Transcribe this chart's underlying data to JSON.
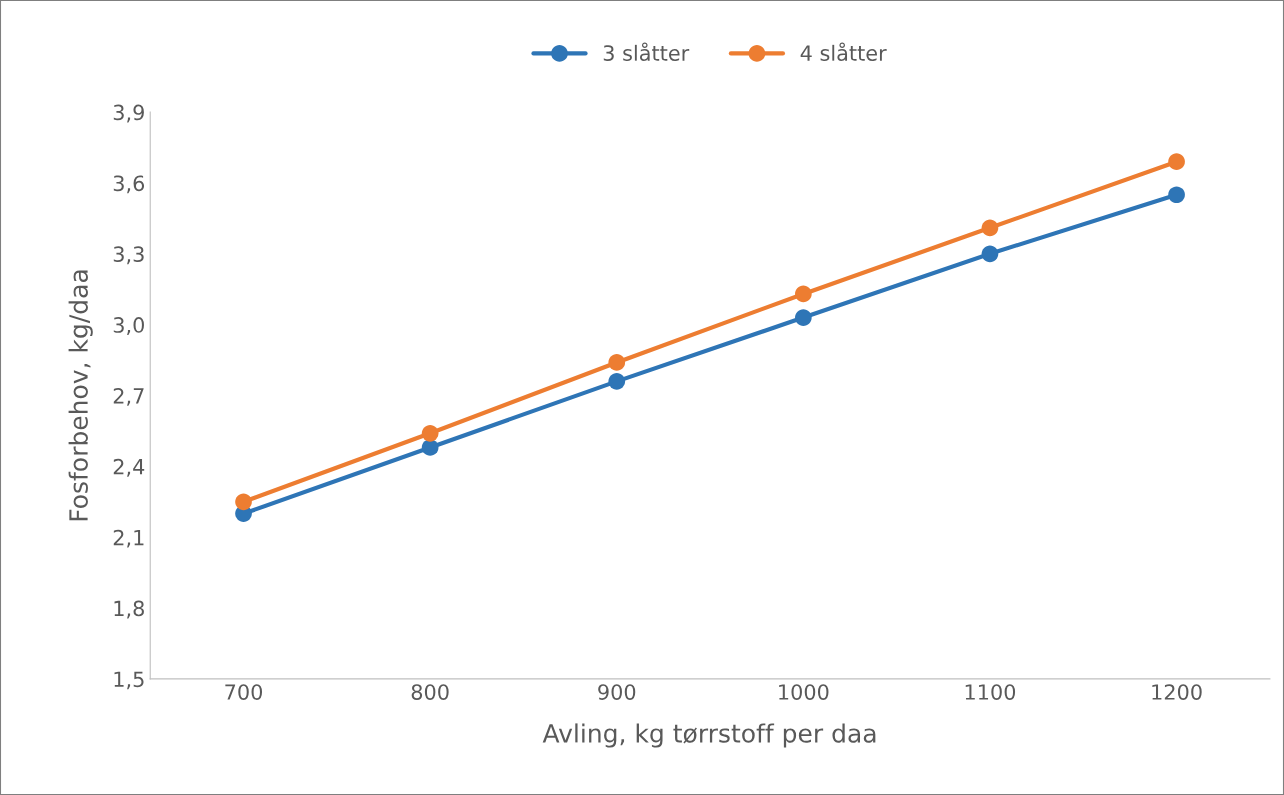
{
  "chart_data": {
    "type": "line",
    "xlabel": "Avling, kg tørrstoff per daa",
    "ylabel": "Fosforbehov, kg/daa",
    "categories": [
      "700",
      "800",
      "900",
      "1000",
      "1100",
      "1200"
    ],
    "series": [
      {
        "name": "3 slåtter",
        "color": "#2e75b6",
        "values": [
          2.2,
          2.48,
          2.76,
          3.03,
          3.3,
          3.55
        ]
      },
      {
        "name": "4 slåtter",
        "color": "#ed7d31",
        "values": [
          2.25,
          2.54,
          2.84,
          3.13,
          3.41,
          3.69
        ]
      }
    ],
    "ylim": [
      1.5,
      3.9
    ],
    "yticks": [
      {
        "value": 1.5,
        "label": "1,5"
      },
      {
        "value": 1.8,
        "label": "1,8"
      },
      {
        "value": 2.1,
        "label": "2,1"
      },
      {
        "value": 2.4,
        "label": "2,4"
      },
      {
        "value": 2.7,
        "label": "2,7"
      },
      {
        "value": 3.0,
        "label": "3,0"
      },
      {
        "value": 3.3,
        "label": "3,3"
      },
      {
        "value": 3.6,
        "label": "3,6"
      },
      {
        "value": 3.9,
        "label": "3,9"
      }
    ],
    "grid": false,
    "legend": "top",
    "marker": "circle",
    "line_style": "solid"
  }
}
